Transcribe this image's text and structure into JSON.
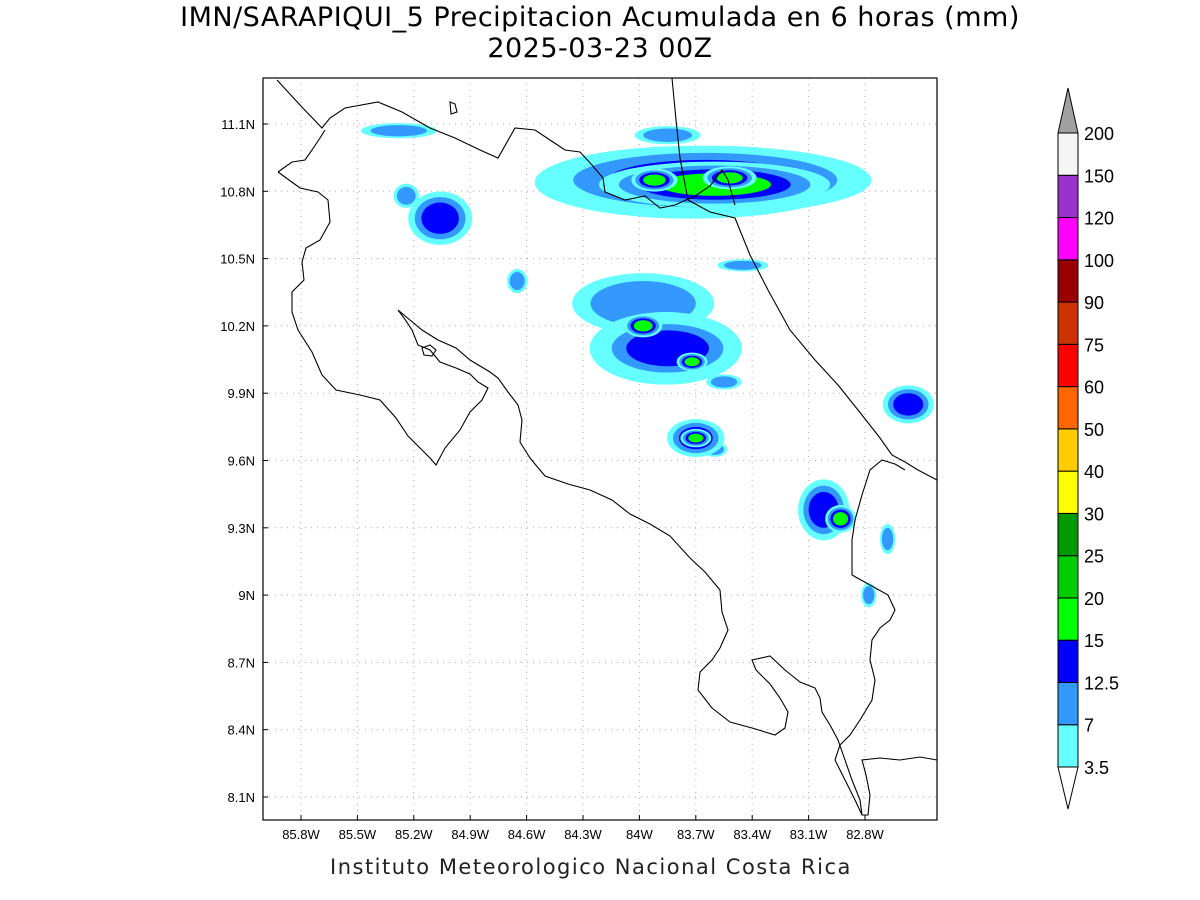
{
  "title": {
    "line1": "IMN/SARAPIQUI_5 Precipitacion Acumulada en 6 horas (mm)",
    "line2": "2025-03-23 00Z"
  },
  "footer": "Instituto Meteorologico Nacional Costa Rica",
  "map": {
    "lon_ticks": [
      "85.8W",
      "85.5W",
      "85.2W",
      "84.9W",
      "84.6W",
      "84.3W",
      "84W",
      "83.7W",
      "83.4W",
      "83.1W",
      "82.8W"
    ],
    "lat_ticks": [
      "11.1N",
      "10.8N",
      "10.5N",
      "10.2N",
      "9.9N",
      "9.6N",
      "9.3N",
      "9N",
      "8.7N",
      "8.4N",
      "8.1N"
    ],
    "lon_range": [
      -86.0,
      -82.5
    ],
    "lat_range": [
      8.0,
      11.3
    ],
    "grid": true
  },
  "colorbar": {
    "levels": [
      "3.5",
      "7",
      "12.5",
      "15",
      "20",
      "25",
      "30",
      "40",
      "50",
      "60",
      "75",
      "90",
      "100",
      "120",
      "150",
      "200"
    ],
    "colors": [
      "#66ffff",
      "#3399ff",
      "#0000ff",
      "#00ff00",
      "#00cc00",
      "#009900",
      "#ffff00",
      "#ffcc00",
      "#ff6600",
      "#ff0000",
      "#cc3300",
      "#990000",
      "#ff00ff",
      "#9933cc",
      "#f5f5f5"
    ],
    "over_color": "#a0a0a0",
    "under_color": "#ffffff"
  },
  "precip_cells": [
    {
      "lon": -83.72,
      "lat": 10.84,
      "rlon": 0.62,
      "rlat": 0.12,
      "class": 1
    },
    {
      "lon": -83.65,
      "lat": 10.85,
      "rlon": 0.52,
      "rlat": 0.09,
      "class": 2
    },
    {
      "lon": -83.6,
      "lat": 10.83,
      "rlon": 0.3,
      "rlat": 0.05,
      "class": 3
    },
    {
      "lon": -83.92,
      "lat": 10.85,
      "rlon": 0.06,
      "rlat": 0.025,
      "class": 3
    },
    {
      "lon": -83.52,
      "lat": 10.86,
      "rlon": 0.07,
      "rlat": 0.025,
      "class": 3
    },
    {
      "lon": -83.98,
      "lat": 10.3,
      "rlon": 0.28,
      "rlat": 0.1,
      "class": 1
    },
    {
      "lon": -83.86,
      "lat": 10.1,
      "rlon": 0.3,
      "rlat": 0.12,
      "class": 1
    },
    {
      "lon": -83.85,
      "lat": 10.1,
      "rlon": 0.22,
      "rlat": 0.08,
      "class": 2
    },
    {
      "lon": -83.98,
      "lat": 10.2,
      "rlon": 0.05,
      "rlat": 0.025,
      "class": 3
    },
    {
      "lon": -83.72,
      "lat": 10.04,
      "rlon": 0.04,
      "rlat": 0.02,
      "class": 3
    },
    {
      "lon": -83.7,
      "lat": 9.7,
      "rlon": 0.09,
      "rlat": 0.05,
      "class": 2
    },
    {
      "lon": -83.7,
      "lat": 9.7,
      "rlon": 0.04,
      "rlat": 0.02,
      "class": 3
    },
    {
      "lon": -83.02,
      "lat": 9.38,
      "rlon": 0.08,
      "rlat": 0.08,
      "class": 2
    },
    {
      "lon": -82.93,
      "lat": 9.34,
      "rlon": 0.04,
      "rlat": 0.03,
      "class": 3
    },
    {
      "lon": -85.06,
      "lat": 10.68,
      "rlon": 0.1,
      "rlat": 0.07,
      "class": 2
    },
    {
      "lon": -85.24,
      "lat": 10.78,
      "rlon": 0.05,
      "rlat": 0.04,
      "class": 1
    },
    {
      "lon": -84.65,
      "lat": 10.4,
      "rlon": 0.04,
      "rlat": 0.04,
      "class": 1
    },
    {
      "lon": -82.57,
      "lat": 9.85,
      "rlon": 0.08,
      "rlat": 0.05,
      "class": 2
    },
    {
      "lon": -83.85,
      "lat": 11.05,
      "rlon": 0.13,
      "rlat": 0.03,
      "class": 1
    },
    {
      "lon": -85.28,
      "lat": 11.07,
      "rlon": 0.15,
      "rlat": 0.025,
      "class": 1
    },
    {
      "lon": -83.45,
      "lat": 10.47,
      "rlon": 0.1,
      "rlat": 0.02,
      "class": 1
    },
    {
      "lon": -82.68,
      "lat": 9.25,
      "rlon": 0.03,
      "rlat": 0.05,
      "class": 1
    },
    {
      "lon": -82.78,
      "lat": 9.0,
      "rlon": 0.03,
      "rlat": 0.04,
      "class": 1
    },
    {
      "lon": -83.55,
      "lat": 9.95,
      "rlon": 0.07,
      "rlat": 0.025,
      "class": 1
    },
    {
      "lon": -83.6,
      "lat": 9.65,
      "rlon": 0.05,
      "rlat": 0.025,
      "class": 1
    }
  ]
}
